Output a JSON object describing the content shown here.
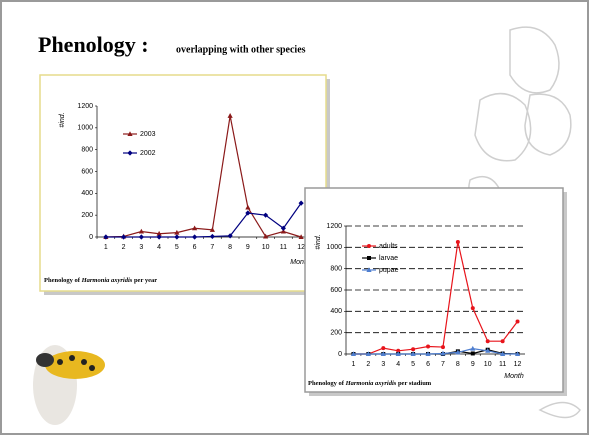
{
  "title": "Phenology :",
  "subtitle": "overlapping with other species",
  "chart_data": [
    {
      "type": "line",
      "y_label": "#ind.",
      "x_label": "Month",
      "caption": [
        "Phenology of ",
        "Harmonia axyridis",
        " per year"
      ],
      "categories": [
        "1",
        "2",
        "3",
        "4",
        "5",
        "6",
        "7",
        "8",
        "9",
        "10",
        "11",
        "12"
      ],
      "ylim": [
        0,
        1200
      ],
      "yticks": [
        0,
        200,
        400,
        600,
        800,
        1000,
        1200
      ],
      "grid": false,
      "series": [
        {
          "name": "2003",
          "color": "#8b1a1a",
          "marker": "triangle",
          "values": [
            0,
            5,
            50,
            30,
            40,
            80,
            65,
            1110,
            270,
            5,
            50,
            0
          ]
        },
        {
          "name": "2002",
          "color": "#000080",
          "marker": "diamond",
          "values": [
            0,
            0,
            0,
            0,
            0,
            0,
            5,
            10,
            220,
            200,
            80,
            310
          ]
        }
      ]
    },
    {
      "type": "line",
      "y_label": "#ind.",
      "x_label": "Month",
      "caption": [
        "Phenology of ",
        "Harmonia axyridis",
        " per stadium"
      ],
      "categories": [
        "1",
        "2",
        "3",
        "4",
        "5",
        "6",
        "7",
        "8",
        "9",
        "10",
        "11",
        "12"
      ],
      "ylim": [
        0,
        1200
      ],
      "yticks": [
        0,
        200,
        400,
        600,
        800,
        1000,
        1200
      ],
      "grid": true,
      "series": [
        {
          "name": "adults",
          "color": "#e8141b",
          "marker": "circle",
          "values": [
            0,
            0,
            55,
            30,
            45,
            70,
            65,
            1050,
            430,
            120,
            120,
            305
          ]
        },
        {
          "name": "larvae",
          "color": "#000000",
          "marker": "square",
          "values": [
            0,
            0,
            0,
            0,
            0,
            0,
            0,
            25,
            5,
            40,
            5,
            0
          ]
        },
        {
          "name": "pupae",
          "color": "#4f7fd0",
          "marker": "triangle",
          "values": [
            0,
            0,
            0,
            0,
            0,
            0,
            5,
            15,
            50,
            30,
            0,
            0
          ]
        }
      ]
    }
  ]
}
